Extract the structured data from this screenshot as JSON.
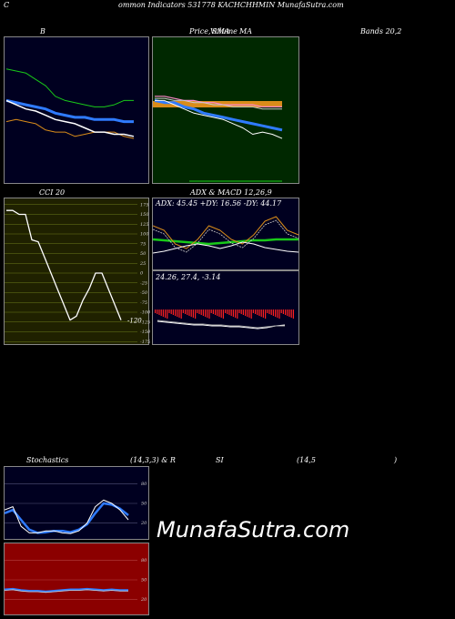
{
  "header": {
    "letter_c": "C",
    "title": "ommon Indicators 531778 KACHCHHMIN MunafaSutra.com"
  },
  "titles": {
    "b": "B",
    "price": "Price,",
    "volume": "Volume",
    "sma": "SMA",
    "ma": "MA",
    "bands": "Bands 20,2",
    "cci": "CCI 20",
    "adx_macd": "ADX  & MACD 12,26,9",
    "stoch_a": "Stochastics",
    "stoch_b": "(14,3,3) & R",
    "stoch_c": "SI",
    "stoch_d": "(14,5",
    "stoch_e": ")"
  },
  "watermark": "MunafaSutra.com",
  "colors": {
    "navy": "#000020",
    "green_bg": "#002800",
    "olive_bg": "#1f2100",
    "red_bg": "#8b0000",
    "accent_blue": "#2f7bff",
    "orange": "#d98c1a"
  },
  "chart_data": [
    {
      "id": "bollinger",
      "type": "line",
      "series": [
        {
          "values": [
            85,
            84,
            83,
            80,
            77,
            72,
            70,
            69,
            68,
            67,
            67,
            68,
            70,
            70
          ]
        },
        {
          "values": [
            70,
            69,
            68,
            67,
            66,
            64,
            63,
            62,
            62,
            61,
            61,
            61,
            60,
            60
          ]
        },
        {
          "values": [
            60,
            61,
            60,
            59,
            56,
            55,
            55,
            53,
            54,
            55,
            55,
            55,
            53,
            52
          ]
        },
        {
          "values": [
            70,
            68,
            66,
            65,
            63,
            61,
            60,
            59,
            57,
            55,
            55,
            54,
            54,
            53
          ]
        }
      ]
    },
    {
      "id": "price_volume_ma",
      "type": "line",
      "series": [
        {
          "values": [
            72,
            72,
            71,
            70,
            70,
            69,
            69,
            68,
            68,
            68,
            68,
            67,
            67,
            67
          ]
        },
        {
          "values": [
            71,
            71,
            70,
            70,
            69,
            69,
            68,
            68,
            67,
            67,
            67,
            66,
            66,
            66
          ]
        },
        {
          "values": [
            70,
            69,
            69,
            67,
            66,
            64,
            63,
            62,
            61,
            60,
            59,
            58,
            57,
            56
          ]
        },
        {
          "values": [
            70,
            70,
            68,
            66,
            64,
            63,
            62,
            61,
            59,
            57,
            54,
            55,
            54,
            52
          ]
        }
      ]
    },
    {
      "id": "cci",
      "type": "line",
      "yticks": [
        175,
        150,
        125,
        100,
        75,
        50,
        25,
        0,
        -25,
        -50,
        -75,
        -100,
        -125,
        -150,
        -175
      ],
      "values": [
        160,
        160,
        150,
        150,
        85,
        80,
        40,
        0,
        -40,
        -80,
        -120,
        -110,
        -70,
        -40,
        0,
        0,
        -40,
        -80,
        -120
      ],
      "last_label": "-120"
    },
    {
      "id": "adx",
      "type": "line",
      "label": "ADX: 45.45  +DY: 16.56  -DY: 44.17",
      "series": [
        {
          "values": [
            45,
            44,
            43,
            42,
            41,
            40,
            41,
            42,
            43,
            44,
            44,
            45,
            45,
            45
          ]
        },
        {
          "values": [
            60,
            55,
            40,
            35,
            45,
            60,
            55,
            45,
            40,
            50,
            65,
            70,
            55,
            50
          ]
        },
        {
          "values": [
            30,
            32,
            35,
            38,
            40,
            38,
            35,
            38,
            42,
            40,
            36,
            34,
            32,
            31
          ]
        }
      ]
    },
    {
      "id": "macd",
      "type": "bar",
      "label": "24.26,  27.4,  -3.14"
    },
    {
      "id": "stochastics",
      "type": "line",
      "yticks": [
        80,
        50,
        20
      ],
      "series": [
        {
          "values": [
            40,
            45,
            15,
            5,
            5,
            8,
            8,
            5,
            4,
            8,
            20,
            45,
            55,
            50,
            40,
            25
          ]
        },
        {
          "values": [
            35,
            40,
            25,
            10,
            5,
            6,
            8,
            8,
            6,
            10,
            18,
            35,
            50,
            48,
            42,
            32
          ]
        }
      ]
    },
    {
      "id": "rsi",
      "type": "line",
      "yticks": [
        80,
        50,
        20
      ],
      "values": [
        35,
        36,
        34,
        33,
        33,
        32,
        33,
        34,
        35,
        35,
        36,
        35,
        34,
        35,
        34,
        34
      ]
    }
  ]
}
